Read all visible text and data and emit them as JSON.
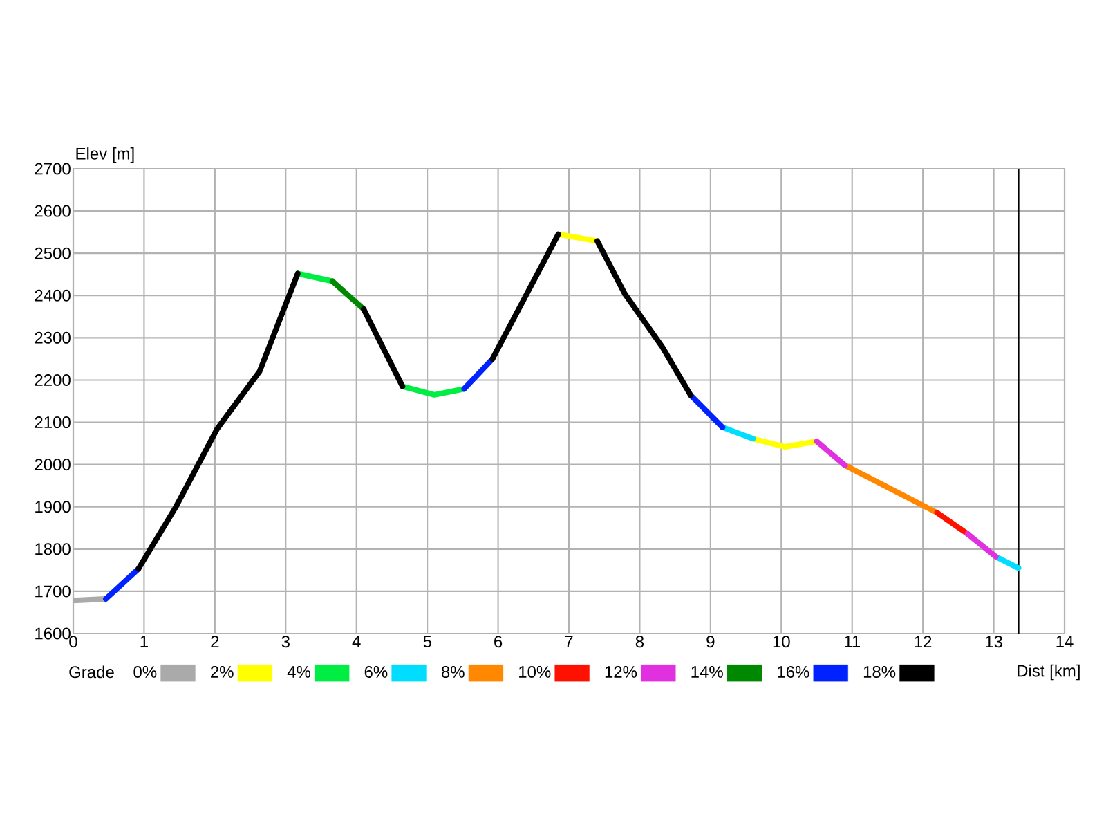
{
  "chart_data": {
    "type": "line",
    "xlabel": "Dist [km]",
    "ylabel": "Elev [m]",
    "legend_title": "Grade",
    "xlim": [
      0,
      14
    ],
    "xticks": [
      0,
      1,
      2,
      3,
      4,
      5,
      6,
      7,
      8,
      9,
      10,
      11,
      12,
      13,
      14
    ],
    "ylim": [
      1600,
      2700
    ],
    "yticks": [
      1600,
      1700,
      1800,
      1900,
      2000,
      2100,
      2200,
      2300,
      2400,
      2500,
      2600,
      2700
    ],
    "grid": true,
    "legend": "bottom",
    "marker": "none",
    "line_style": "solid",
    "ref_lines": [
      {
        "axis": "x",
        "value": 13.35,
        "color": "#000000"
      }
    ],
    "series": [
      {
        "name": "0%",
        "color": "#aaaaaa",
        "x": [
          0,
          0.46
        ],
        "values": [
          1678,
          1682
        ]
      },
      {
        "name": "2%",
        "color": "#ffff00",
        "x": [
          6.85,
          7.4,
          null,
          9.6,
          10.05,
          10.5
        ],
        "values": [
          2545,
          2529,
          null,
          2061,
          2042,
          2055
        ]
      },
      {
        "name": "4%",
        "color": "#00ee44",
        "x": [
          3.17,
          3.66,
          null,
          4.65,
          5.1,
          5.52
        ],
        "values": [
          2452,
          2434,
          null,
          2185,
          2165,
          2179
        ]
      },
      {
        "name": "6%",
        "color": "#00ddff",
        "x": [
          9.17,
          9.6,
          null,
          13.03,
          13.35
        ],
        "values": [
          2088,
          2061,
          null,
          1782,
          1755
        ]
      },
      {
        "name": "8%",
        "color": "#ff8800",
        "x": [
          10.9,
          12.2
        ],
        "values": [
          1998,
          1886
        ]
      },
      {
        "name": "10%",
        "color": "#ff1100",
        "x": [
          12.2,
          12.63
        ],
        "values": [
          1886,
          1836
        ]
      },
      {
        "name": "12%",
        "color": "#e030e0",
        "x": [
          10.5,
          10.9,
          null,
          12.63,
          13.03
        ],
        "values": [
          2055,
          1998,
          null,
          1836,
          1782
        ]
      },
      {
        "name": "14%",
        "color": "#008800",
        "x": [
          3.66,
          4.1
        ],
        "values": [
          2434,
          2368
        ]
      },
      {
        "name": "16%",
        "color": "#0022ff",
        "x": [
          0.46,
          0.92,
          null,
          5.52,
          5.92,
          null,
          8.72,
          9.17
        ],
        "values": [
          1682,
          1753,
          null,
          2179,
          2250,
          null,
          2164,
          2088
        ]
      },
      {
        "name": "18%",
        "color": "#000000",
        "x": [
          0.92,
          1.45,
          2.03,
          2.63,
          3.17,
          null,
          4.1,
          4.65,
          null,
          5.92,
          6.85,
          null,
          7.4,
          7.79,
          8.32,
          8.72
        ],
        "values": [
          1753,
          1900,
          2084,
          2220,
          2452,
          null,
          2368,
          2185,
          null,
          2250,
          2545,
          null,
          2529,
          2404,
          2278,
          2164
        ]
      }
    ]
  }
}
